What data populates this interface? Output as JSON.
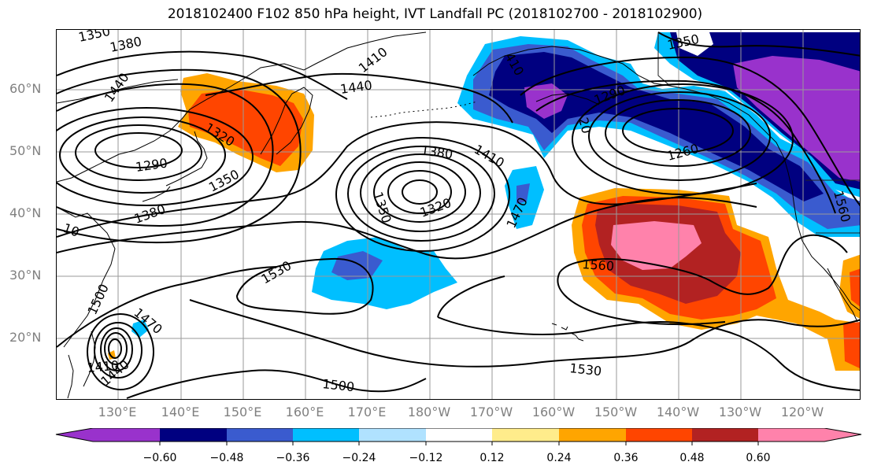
{
  "title": "2018102400 F102 850 hPa height, IVT Landfall PC (2018102700 - 2018102900)",
  "latitudes": [
    "60°N",
    "50°N",
    "40°N",
    "30°N",
    "20°N"
  ],
  "longitudes": [
    "130°E",
    "140°E",
    "150°E",
    "160°E",
    "170°E",
    "180°W",
    "170°W",
    "160°W",
    "150°W",
    "140°W",
    "130°W",
    "120°W"
  ],
  "contour_labels": [
    "1350",
    "1380",
    "1440",
    "1410",
    "1440",
    "1320",
    "1290",
    "1350",
    "1380",
    "10",
    "1380",
    "1410",
    "1320",
    "1350",
    "1470",
    "1530",
    "1500",
    "1470",
    "1410",
    "1440",
    "1500",
    "1530",
    "1560",
    "1350",
    "1290",
    "1260",
    "1560",
    "410",
    "20"
  ],
  "colorbar": {
    "ticks": [
      "−0.60",
      "−0.48",
      "−0.36",
      "−0.24",
      "−0.12",
      "0.12",
      "0.24",
      "0.36",
      "0.48",
      "0.60"
    ],
    "colors": [
      "#9932cc",
      "#000080",
      "#3a5bcf",
      "#00bfff",
      "#b0e2ff",
      "#ffffff",
      "#ffec8b",
      "#ffa500",
      "#ff4500",
      "#b22222",
      "#ff82ab"
    ]
  }
}
